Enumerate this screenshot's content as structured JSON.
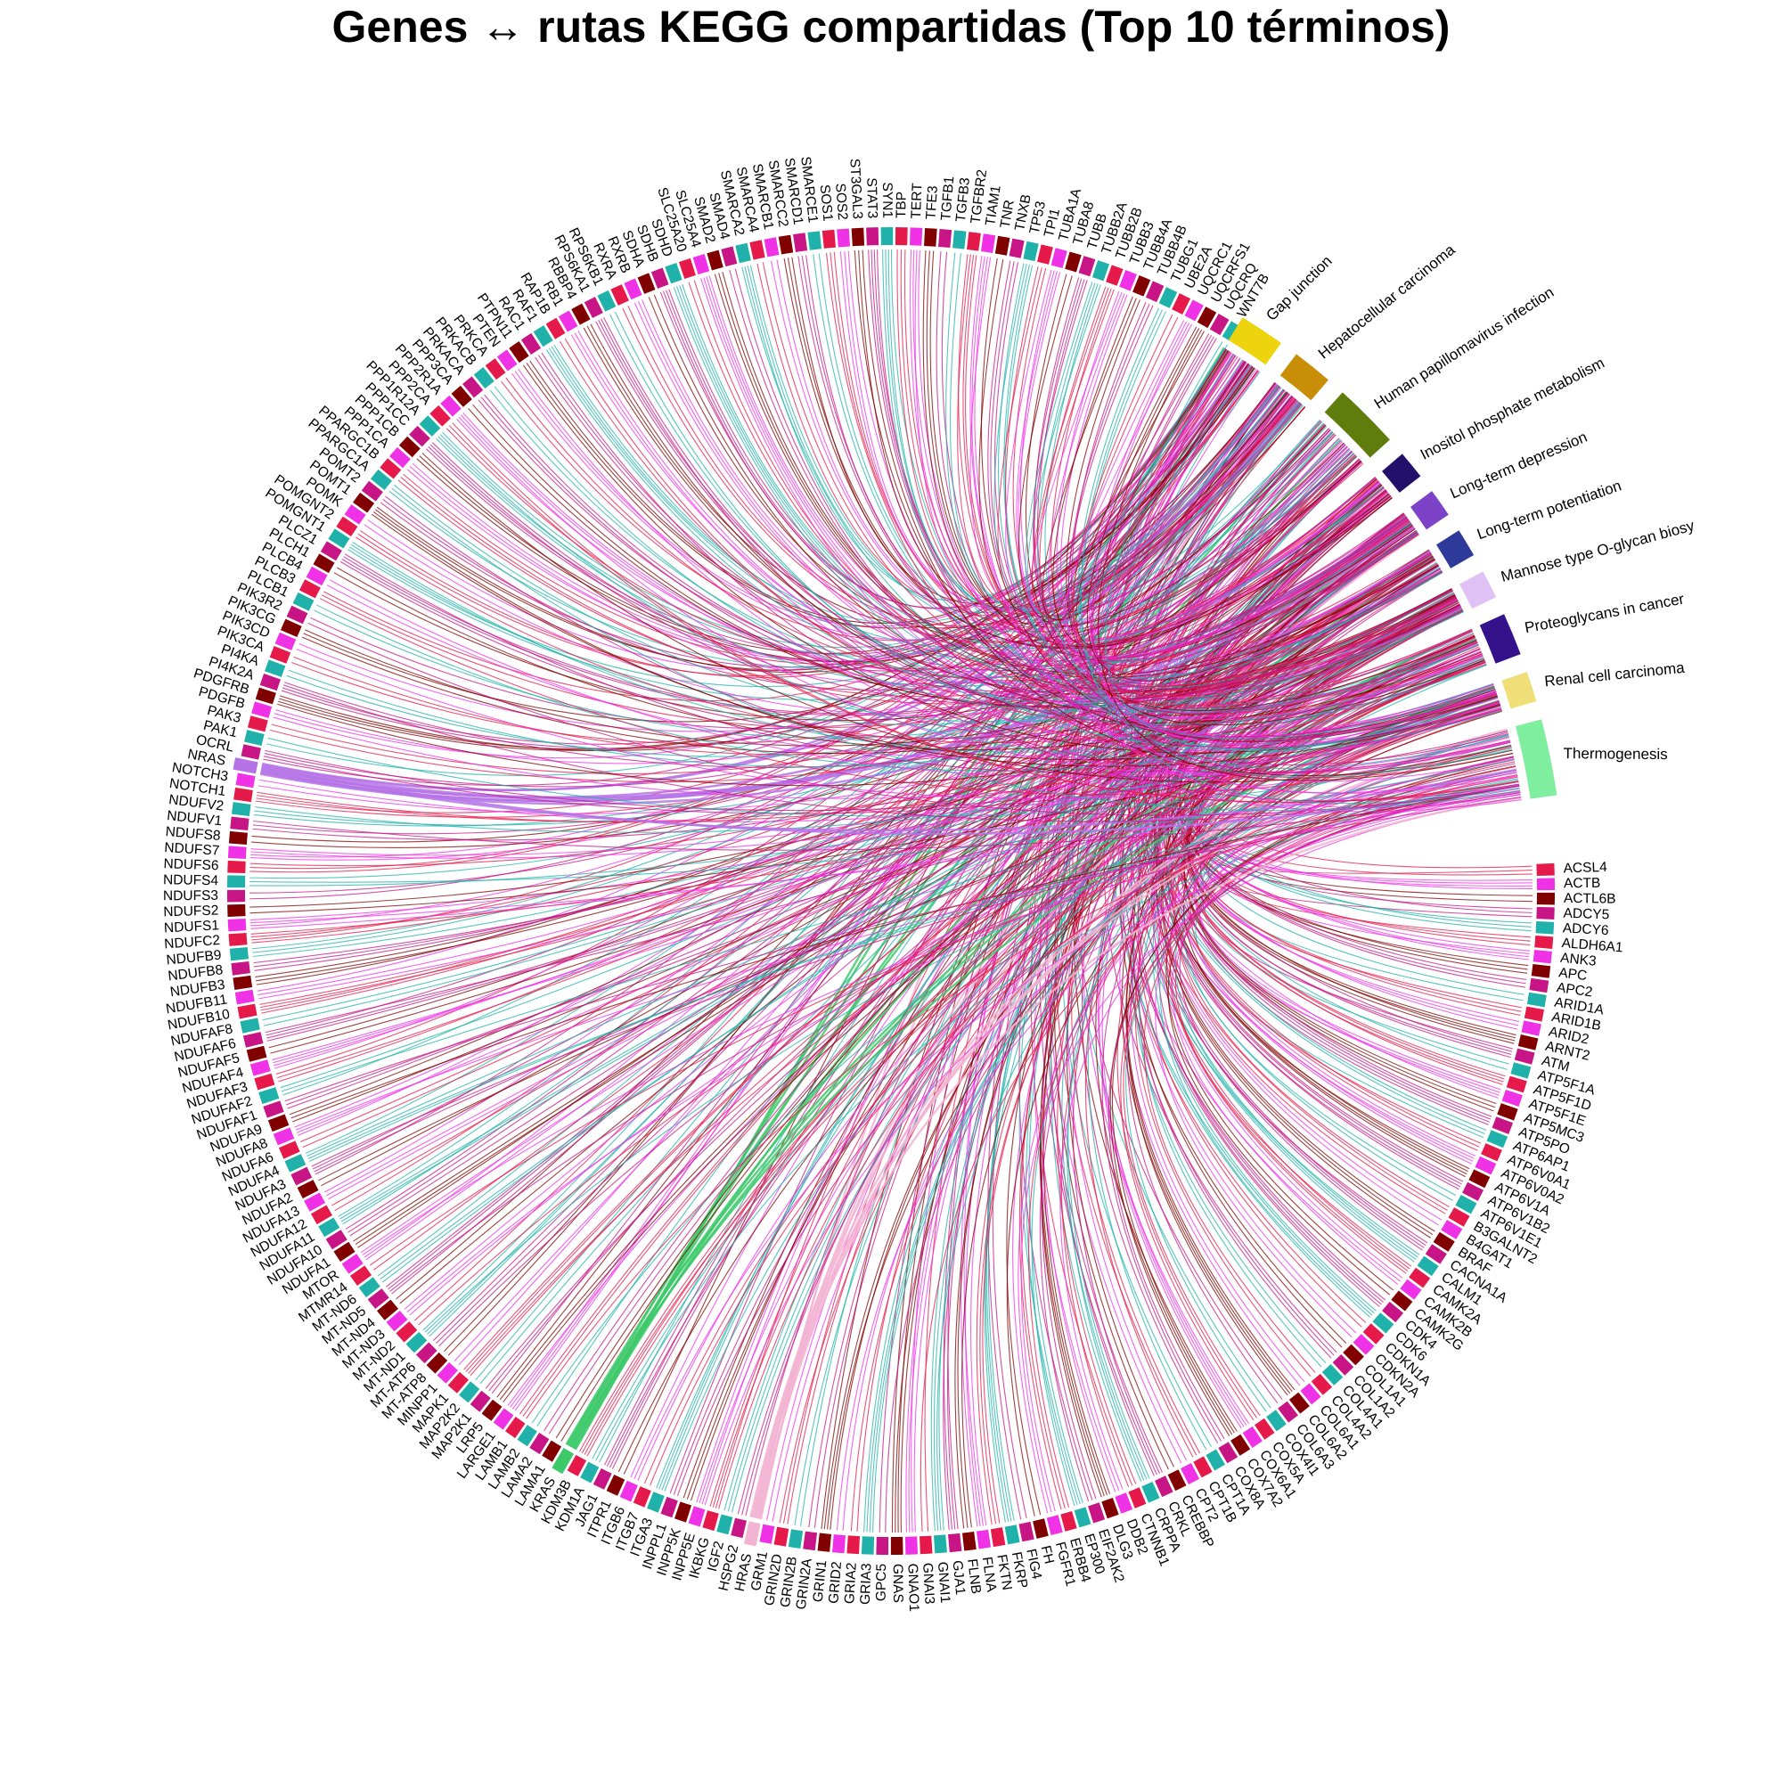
{
  "title": "Genes ↔ rutas KEGG compartidas (Top 10 términos)",
  "chart_data": {
    "type": "chord",
    "pathways": [
      {
        "name": "Gap junction",
        "color": "#EED40F"
      },
      {
        "name": "Hepatocellular carcinoma",
        "color": "#C98E07"
      },
      {
        "name": "Human papillomavirus infection",
        "color": "#5F7D0C"
      },
      {
        "name": "Inositol phosphate metabolism",
        "color": "#22106A"
      },
      {
        "name": "Long-term depression",
        "color": "#7C43C8"
      },
      {
        "name": "Long-term potentiation",
        "color": "#2E3A9A"
      },
      {
        "name": "Mannose type O-glycan biosy",
        "color": "#DFC1F3"
      },
      {
        "name": "Proteoglycans in cancer",
        "color": "#34128C"
      },
      {
        "name": "Renal cell carcinoma",
        "color": "#F0DF78"
      },
      {
        "name": "Thermogenesis",
        "color": "#7FEE9F"
      }
    ],
    "genes": [
      "ACSL4",
      "ACTB",
      "ACTL6B",
      "ADCY5",
      "ADCY6",
      "ALDH6A1",
      "ANK3",
      "APC",
      "APC2",
      "ARID1A",
      "ARID1B",
      "ARID2",
      "ARNT2",
      "ATM",
      "ATP5F1A",
      "ATP5F1D",
      "ATP5F1E",
      "ATP5MC3",
      "ATP5PO",
      "ATP6AP1",
      "ATP6V0A1",
      "ATP6V0A2",
      "ATP6V1A",
      "ATP6V1B2",
      "ATP6V1E1",
      "B3GALNT2",
      "B4GAT1",
      "BRAF",
      "CACNA1A",
      "CALM1",
      "CAMK2A",
      "CAMK2B",
      "CAMK2G",
      "CDK4",
      "CDK6",
      "CDKN1A",
      "CDKN2A",
      "COL1A1",
      "COL1A2",
      "COL4A1",
      "COL4A2",
      "COL6A1",
      "COL6A2",
      "COL6A3",
      "COX4I1",
      "COX5A",
      "COX6A1",
      "COX7A2",
      "COX8A",
      "CPT1A",
      "CPT1B",
      "CPT2",
      "CREBBP",
      "CRKL",
      "CRPPA",
      "CTNNB1",
      "DDB2",
      "DLG3",
      "EIF2AK2",
      "EP300",
      "ERBB4",
      "FGFR1",
      "FH",
      "FIG4",
      "FKRP",
      "FKTN",
      "FLNA",
      "FLNB",
      "GJA1",
      "GNAI1",
      "GNAI3",
      "GNAO1",
      "GNAS",
      "GPC5",
      "GRIA3",
      "GRIA2",
      "GRID2",
      "GRIN1",
      "GRIN2A",
      "GRIN2B",
      "GRIN2D",
      "GRM1",
      "HRAS",
      "HSPG2",
      "IGF2",
      "IKBKG",
      "INPP5E",
      "INPP5K",
      "INPPL1",
      "ITGA3",
      "ITGB7",
      "ITGB6",
      "ITPR1",
      "JAG1",
      "KDM1A",
      "KDM3B",
      "KRAS",
      "LAMA1",
      "LAMA2",
      "LAMB2",
      "LAMB1",
      "LARGE1",
      "LRP5",
      "MAP2K1",
      "MAP2K2",
      "MAPK1",
      "MINPP1",
      "MT-ATP8",
      "MT-ATP6",
      "MT-ND1",
      "MT-ND2",
      "MT-ND3",
      "MT-ND4",
      "MT-ND5",
      "MT-ND6",
      "MTMR14",
      "MTOR",
      "NDUFA1",
      "NDUFA10",
      "NDUFA11",
      "NDUFA12",
      "NDUFA13",
      "NDUFA2",
      "NDUFA3",
      "NDUFA4",
      "NDUFA6",
      "NDUFA8",
      "NDUFA9",
      "NDUFAF1",
      "NDUFAF2",
      "NDUFAF3",
      "NDUFAF4",
      "NDUFAF5",
      "NDUFAF6",
      "NDUFAF8",
      "NDUFB10",
      "NDUFB11",
      "NDUFB3",
      "NDUFB8",
      "NDUFB9",
      "NDUFC2",
      "NDUFS1",
      "NDUFS2",
      "NDUFS3",
      "NDUFS4",
      "NDUFS6",
      "NDUFS7",
      "NDUFS8",
      "NDUFV1",
      "NDUFV2",
      "NOTCH1",
      "NOTCH3",
      "NRAS",
      "OCRL",
      "PAK1",
      "PAK3",
      "PDGFB",
      "PDGFRB",
      "PI4K2A",
      "PI4KA",
      "PIK3CA",
      "PIK3CD",
      "PIK3CG",
      "PIK3R2",
      "PLCB1",
      "PLCB3",
      "PLCB4",
      "PLCH1",
      "PLCZ1",
      "POMGNT1",
      "POMGNT2",
      "POMK",
      "POMT1",
      "POMT2",
      "PPARGC1A",
      "PPARGC1B",
      "PPP1CA",
      "PPP1CB",
      "PPP1CC",
      "PPP1R12A",
      "PPP2CA",
      "PPP2R1A",
      "PPP3CA",
      "PRKACA",
      "PRKACB",
      "PRKCA",
      "PTEN",
      "PTPN11",
      "RAC1",
      "RAF1",
      "RAP1B",
      "RB1",
      "RBBP4",
      "RPS6KA1",
      "RPS6KB1",
      "RXRA",
      "RXRB",
      "SDHA",
      "SDHB",
      "SDHD",
      "SLC25A20",
      "SLC25A4",
      "SMAD2",
      "SMAD4",
      "SMARCA2",
      "SMARCA4",
      "SMARCB1",
      "SMARCC2",
      "SMARCD1",
      "SMARCE1",
      "SOS1",
      "SOS2",
      "ST3GAL3",
      "STAT3",
      "SYN1",
      "TBP",
      "TERT",
      "TFE3",
      "TGFB1",
      "TGFB3",
      "TGFBR2",
      "TIAM1",
      "TNR",
      "TNXB",
      "TP53",
      "TPI1",
      "TUBA1A",
      "TUBA8",
      "TUBB",
      "TUBB2A",
      "TUBB2B",
      "TUBB3",
      "TUBB4A",
      "TUBB4B",
      "TUBG1",
      "UBE2A",
      "UQCRC1",
      "UQCRFS1",
      "UQCRQ",
      "WNT7B"
    ],
    "highlighted_genes": [
      {
        "name": "NRAS",
        "color": "#B573E6"
      },
      {
        "name": "HRAS",
        "color": "#F2B4D2"
      },
      {
        "name": "KRAS",
        "color": "#3DC96A"
      }
    ]
  }
}
